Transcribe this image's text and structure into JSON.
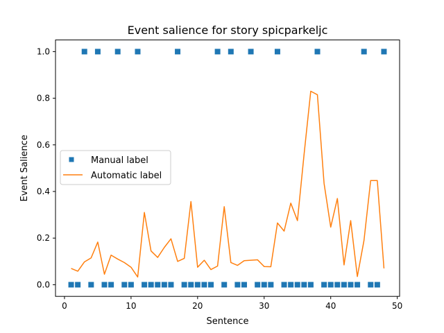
{
  "chart_data": {
    "type": "line",
    "title": "Event salience for story spicparkeljc",
    "xlabel": "Sentence",
    "ylabel": "Event Salience",
    "xlim": [
      -1.35,
      50.35
    ],
    "ylim": [
      -0.05,
      1.05
    ],
    "xticks": [
      0,
      10,
      20,
      30,
      40,
      50
    ],
    "yticks": [
      0.0,
      0.2,
      0.4,
      0.6,
      0.8,
      1.0
    ],
    "xtick_labels": [
      "0",
      "10",
      "20",
      "30",
      "40",
      "50"
    ],
    "ytick_labels": [
      "0.0",
      "0.2",
      "0.4",
      "0.6",
      "0.8",
      "1.0"
    ],
    "grid": false,
    "legend_position": "center-left",
    "series": [
      {
        "name": "Manual label",
        "type": "scatter",
        "marker": "square",
        "color": "#1f77b4",
        "x": [
          1,
          2,
          3,
          4,
          5,
          6,
          7,
          8,
          9,
          10,
          11,
          12,
          13,
          14,
          15,
          16,
          17,
          18,
          19,
          20,
          21,
          22,
          23,
          24,
          25,
          26,
          27,
          28,
          29,
          30,
          31,
          32,
          33,
          34,
          35,
          36,
          37,
          38,
          39,
          40,
          41,
          42,
          43,
          44,
          45,
          46,
          47,
          48
        ],
        "y": [
          0,
          0,
          1,
          0,
          1,
          0,
          0,
          1,
          0,
          0,
          1,
          0,
          0,
          0,
          0,
          0,
          1,
          0,
          0,
          0,
          0,
          0,
          1,
          0,
          1,
          0,
          0,
          1,
          0,
          0,
          0,
          1,
          0,
          0,
          0,
          0,
          0,
          1,
          0,
          0,
          0,
          0,
          0,
          0,
          1,
          0,
          0,
          1
        ]
      },
      {
        "name": "Automatic label",
        "type": "line",
        "color": "#ff7f0e",
        "x": [
          1,
          2,
          3,
          4,
          5,
          6,
          7,
          8,
          9,
          10,
          11,
          12,
          13,
          14,
          15,
          16,
          17,
          18,
          19,
          20,
          21,
          22,
          23,
          24,
          25,
          26,
          27,
          28,
          29,
          30,
          31,
          32,
          33,
          34,
          35,
          36,
          37,
          38,
          39,
          40,
          41,
          42,
          43,
          44,
          45,
          46,
          47,
          48
        ],
        "y": [
          0.07,
          0.058,
          0.098,
          0.115,
          0.183,
          0.045,
          0.127,
          0.11,
          0.095,
          0.075,
          0.033,
          0.31,
          0.145,
          0.117,
          0.16,
          0.197,
          0.1,
          0.113,
          0.357,
          0.075,
          0.105,
          0.065,
          0.08,
          0.335,
          0.095,
          0.083,
          0.103,
          0.105,
          0.107,
          0.078,
          0.077,
          0.265,
          0.23,
          0.35,
          0.275,
          0.56,
          0.83,
          0.815,
          0.435,
          0.247,
          0.37,
          0.085,
          0.275,
          0.035,
          0.19,
          0.447,
          0.447,
          0.07
        ]
      }
    ]
  }
}
